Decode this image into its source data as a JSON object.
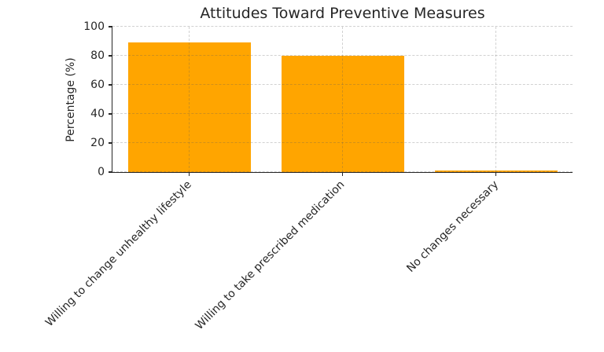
{
  "chart_data": {
    "type": "bar",
    "title": "Attitudes Toward Preventive Measures",
    "xlabel": "",
    "ylabel": "Percentage (%)",
    "categories": [
      "Willing to change unhealthy lifestyle",
      "Willing to take prescribed medication",
      "No changes necessary"
    ],
    "values": [
      89,
      80,
      1
    ],
    "ylim": [
      0,
      100
    ],
    "yticks": [
      0,
      20,
      40,
      60,
      80,
      100
    ],
    "ytick_labels": [
      "0",
      "20",
      "40",
      "60",
      "80",
      "100"
    ],
    "bar_color": "#FFA500",
    "text_color": "#262626",
    "grid": "dashed light-gray horizontal and vertical gridlines, drawn above bars",
    "legend": "none",
    "spines": "left and bottom only",
    "xtick_rotation": 45
  }
}
